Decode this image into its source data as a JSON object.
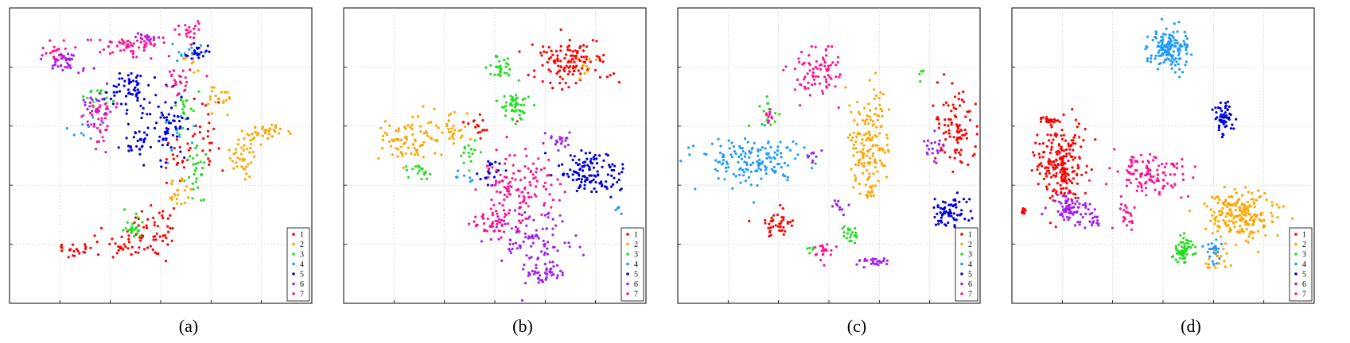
{
  "figure": {
    "captions": [
      "(a)",
      "(b)",
      "(c)",
      "(d)"
    ]
  },
  "legend": {
    "labels": [
      "1",
      "2",
      "3",
      "4",
      "5",
      "6",
      "7"
    ],
    "colors": [
      "#ff0000",
      "#ffa500",
      "#22dd22",
      "#1e9bff",
      "#0000dd",
      "#a020f0",
      "#ff1493"
    ]
  },
  "chart_data": [
    {
      "type": "scatter",
      "caption": "(a)",
      "grid": true,
      "legend_position": "bottom-right",
      "series": [
        {
          "name": "1",
          "clusters": [
            [
              0.4,
              0.8,
              0.12,
              0.05,
              50
            ],
            [
              0.48,
              0.73,
              0.07,
              0.05,
              30
            ],
            [
              0.22,
              0.82,
              0.05,
              0.03,
              20
            ],
            [
              0.65,
              0.45,
              0.05,
              0.1,
              25
            ],
            [
              0.55,
              0.52,
              0.04,
              0.07,
              20
            ]
          ]
        },
        {
          "name": "2",
          "clusters": [
            [
              0.85,
              0.42,
              0.07,
              0.02,
              35
            ],
            [
              0.78,
              0.5,
              0.05,
              0.06,
              40
            ],
            [
              0.55,
              0.62,
              0.04,
              0.05,
              20
            ],
            [
              0.7,
              0.3,
              0.04,
              0.04,
              20
            ],
            [
              0.6,
              0.18,
              0.03,
              0.03,
              10
            ]
          ]
        },
        {
          "name": "3",
          "clusters": [
            [
              0.62,
              0.55,
              0.03,
              0.08,
              30
            ],
            [
              0.4,
              0.74,
              0.04,
              0.04,
              25
            ],
            [
              0.58,
              0.35,
              0.04,
              0.06,
              20
            ],
            [
              0.3,
              0.3,
              0.04,
              0.05,
              15
            ]
          ]
        },
        {
          "name": "4",
          "clusters": [
            [
              0.6,
              0.15,
              0.05,
              0.03,
              15
            ],
            [
              0.55,
              0.4,
              0.05,
              0.1,
              15
            ],
            [
              0.25,
              0.4,
              0.06,
              0.05,
              10
            ]
          ]
        },
        {
          "name": "5",
          "clusters": [
            [
              0.4,
              0.28,
              0.08,
              0.06,
              60
            ],
            [
              0.52,
              0.4,
              0.06,
              0.1,
              60
            ],
            [
              0.42,
              0.46,
              0.05,
              0.05,
              30
            ],
            [
              0.62,
              0.15,
              0.03,
              0.03,
              20
            ]
          ]
        },
        {
          "name": "6",
          "clusters": [
            [
              0.18,
              0.18,
              0.06,
              0.03,
              40
            ],
            [
              0.28,
              0.34,
              0.04,
              0.08,
              25
            ],
            [
              0.45,
              0.1,
              0.04,
              0.02,
              15
            ]
          ]
        },
        {
          "name": "7",
          "clusters": [
            [
              0.4,
              0.13,
              0.1,
              0.03,
              60
            ],
            [
              0.3,
              0.38,
              0.05,
              0.08,
              35
            ],
            [
              0.55,
              0.25,
              0.05,
              0.05,
              25
            ],
            [
              0.15,
              0.15,
              0.04,
              0.04,
              20
            ],
            [
              0.6,
              0.08,
              0.04,
              0.03,
              20
            ]
          ]
        }
      ]
    },
    {
      "type": "scatter",
      "caption": "(b)",
      "grid": true,
      "legend_position": "bottom-right",
      "series": [
        {
          "name": "1",
          "clusters": [
            [
              0.75,
              0.18,
              0.1,
              0.08,
              120
            ],
            [
              0.45,
              0.4,
              0.05,
              0.05,
              15
            ]
          ]
        },
        {
          "name": "2",
          "clusters": [
            [
              0.22,
              0.45,
              0.08,
              0.07,
              80
            ],
            [
              0.35,
              0.4,
              0.06,
              0.06,
              30
            ],
            [
              0.8,
              0.2,
              0.04,
              0.05,
              10
            ]
          ]
        },
        {
          "name": "3",
          "clusters": [
            [
              0.57,
              0.33,
              0.05,
              0.05,
              50
            ],
            [
              0.52,
              0.2,
              0.04,
              0.04,
              30
            ],
            [
              0.26,
              0.55,
              0.05,
              0.03,
              20
            ],
            [
              0.42,
              0.5,
              0.03,
              0.04,
              15
            ]
          ]
        },
        {
          "name": "4",
          "clusters": [
            [
              0.38,
              0.58,
              0.04,
              0.03,
              8
            ],
            [
              0.9,
              0.68,
              0.02,
              0.02,
              5
            ]
          ]
        },
        {
          "name": "5",
          "clusters": [
            [
              0.82,
              0.55,
              0.09,
              0.07,
              120
            ],
            [
              0.48,
              0.55,
              0.04,
              0.04,
              20
            ]
          ]
        },
        {
          "name": "6",
          "clusters": [
            [
              0.62,
              0.78,
              0.12,
              0.1,
              100
            ],
            [
              0.65,
              0.9,
              0.06,
              0.03,
              40
            ],
            [
              0.72,
              0.45,
              0.04,
              0.03,
              20
            ]
          ]
        },
        {
          "name": "7",
          "clusters": [
            [
              0.58,
              0.6,
              0.12,
              0.1,
              120
            ],
            [
              0.5,
              0.72,
              0.08,
              0.05,
              50
            ]
          ]
        }
      ]
    },
    {
      "type": "scatter",
      "caption": "(c)",
      "grid": true,
      "legend_position": "bottom-right",
      "series": [
        {
          "name": "1",
          "clusters": [
            [
              0.92,
              0.4,
              0.06,
              0.12,
              90
            ],
            [
              0.33,
              0.73,
              0.06,
              0.04,
              40
            ]
          ]
        },
        {
          "name": "2",
          "clusters": [
            [
              0.63,
              0.46,
              0.06,
              0.18,
              160
            ]
          ]
        },
        {
          "name": "3",
          "clusters": [
            [
              0.57,
              0.77,
              0.03,
              0.03,
              20
            ],
            [
              0.3,
              0.37,
              0.04,
              0.05,
              15
            ],
            [
              0.8,
              0.22,
              0.02,
              0.02,
              5
            ],
            [
              0.44,
              0.82,
              0.02,
              0.02,
              5
            ]
          ]
        },
        {
          "name": "4",
          "clusters": [
            [
              0.25,
              0.52,
              0.16,
              0.07,
              150
            ]
          ]
        },
        {
          "name": "5",
          "clusters": [
            [
              0.9,
              0.69,
              0.06,
              0.05,
              70
            ]
          ]
        },
        {
          "name": "6",
          "clusters": [
            [
              0.85,
              0.47,
              0.03,
              0.05,
              20
            ],
            [
              0.65,
              0.86,
              0.05,
              0.02,
              25
            ],
            [
              0.53,
              0.67,
              0.02,
              0.03,
              10
            ],
            [
              0.45,
              0.5,
              0.02,
              0.02,
              10
            ]
          ]
        },
        {
          "name": "7",
          "clusters": [
            [
              0.46,
              0.22,
              0.08,
              0.08,
              80
            ],
            [
              0.48,
              0.82,
              0.03,
              0.04,
              20
            ],
            [
              0.3,
              0.35,
              0.02,
              0.03,
              10
            ]
          ]
        }
      ]
    },
    {
      "type": "scatter",
      "caption": "(d)",
      "grid": true,
      "legend_position": "bottom-right",
      "series": [
        {
          "name": "1",
          "clusters": [
            [
              0.16,
              0.53,
              0.07,
              0.12,
              220
            ],
            [
              0.12,
              0.38,
              0.02,
              0.01,
              20
            ],
            [
              0.04,
              0.69,
              0.01,
              0.01,
              10
            ]
          ]
        },
        {
          "name": "2",
          "clusters": [
            [
              0.75,
              0.7,
              0.1,
              0.08,
              200
            ],
            [
              0.68,
              0.86,
              0.04,
              0.04,
              20
            ]
          ]
        },
        {
          "name": "3",
          "clusters": [
            [
              0.57,
              0.81,
              0.04,
              0.04,
              60
            ]
          ]
        },
        {
          "name": "4",
          "clusters": [
            [
              0.52,
              0.14,
              0.06,
              0.06,
              150
            ],
            [
              0.67,
              0.82,
              0.03,
              0.04,
              25
            ]
          ]
        },
        {
          "name": "5",
          "clusters": [
            [
              0.7,
              0.37,
              0.03,
              0.05,
              60
            ]
          ]
        },
        {
          "name": "6",
          "clusters": [
            [
              0.2,
              0.68,
              0.06,
              0.04,
              80
            ],
            [
              0.27,
              0.72,
              0.02,
              0.02,
              15
            ]
          ]
        },
        {
          "name": "7",
          "clusters": [
            [
              0.45,
              0.57,
              0.1,
              0.06,
              120
            ],
            [
              0.38,
              0.7,
              0.03,
              0.04,
              20
            ]
          ]
        }
      ]
    }
  ]
}
